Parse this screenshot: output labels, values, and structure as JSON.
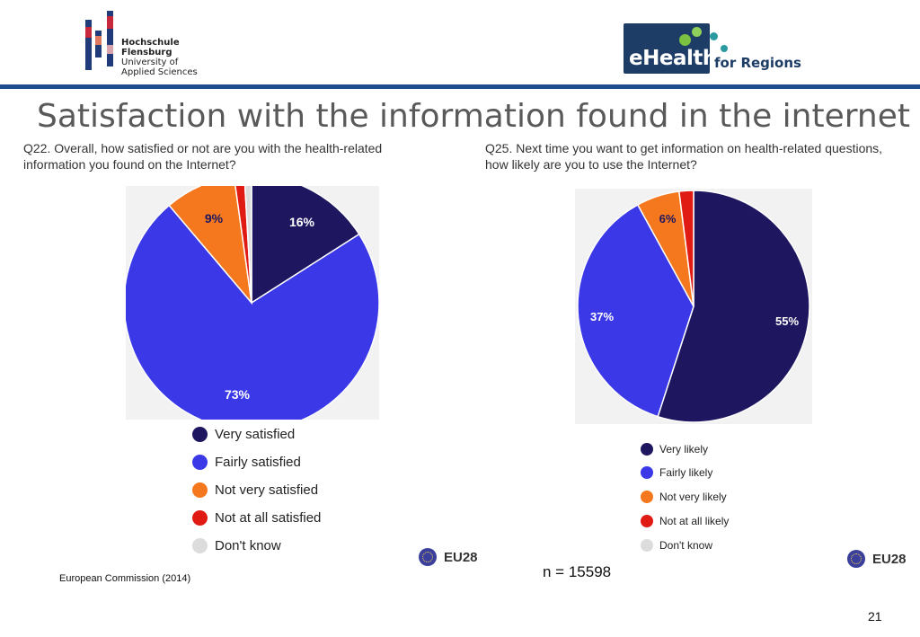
{
  "header": {
    "university_logo": {
      "lines": [
        "Hochschule",
        "Flensburg",
        "University of",
        "Applied Sciences"
      ]
    },
    "ehealth_logo": {
      "main": "eHealth",
      "sub": "for Regions"
    },
    "rule_color": "#1f4e8c"
  },
  "title": "Satisfaction with the information found in the internet",
  "chart_data": [
    {
      "type": "pie",
      "title": "Q22. Overall, how satisfied or not are you with the health-related information you found on the Internet?",
      "title_lines": [
        "Q22. Overall, how satisfied or not are you with the health-related",
        "information you found on the Internet?"
      ],
      "slices": [
        {
          "label": "Very satisfied",
          "value": 16,
          "display": "16%",
          "color": "#1e1760"
        },
        {
          "label": "Fairly satisfied",
          "value": 73,
          "display": "73%",
          "color": "#3b38e8"
        },
        {
          "label": "Not very satisfied",
          "value": 9,
          "display": "9%",
          "color": "#f5781e"
        },
        {
          "label": "Not at all satisfied",
          "value": 1.3,
          "display": "",
          "color": "#e01b14"
        },
        {
          "label": "Don't know",
          "value": 0.9,
          "display": "",
          "color": "#dcdcdc"
        }
      ],
      "legend": [
        "Very satisfied",
        "Fairly satisfied",
        "Not very satisfied",
        "Not at all satisfied",
        "Don't know"
      ],
      "badge": "EU28"
    },
    {
      "type": "pie",
      "title": "Q25. Next time you want to get information on health-related questions, how likely are you to use the Internet?",
      "title_lines": [
        "Q25. Next time you want to get information on health-related questions,",
        "how likely are you to use the Internet?"
      ],
      "slices": [
        {
          "label": "Very likely",
          "value": 55,
          "display": "55%",
          "color": "#1e1760"
        },
        {
          "label": "Fairly likely",
          "value": 37,
          "display": "37%",
          "color": "#3b38e8"
        },
        {
          "label": "Not very likely",
          "value": 6,
          "display": "6%",
          "color": "#f5781e"
        },
        {
          "label": "Not at all likely",
          "value": 2,
          "display": "",
          "color": "#e01b14"
        },
        {
          "label": "Don't know",
          "value": 0,
          "display": "",
          "color": "#dcdcdc"
        }
      ],
      "legend": [
        "Very likely",
        "Fairly likely",
        "Not very likely",
        "Not at all likely",
        "Don't know"
      ],
      "badge": "EU28"
    }
  ],
  "footer": {
    "source": "European Commission (2014)",
    "sample": "n = 15598",
    "page_number": "21"
  }
}
